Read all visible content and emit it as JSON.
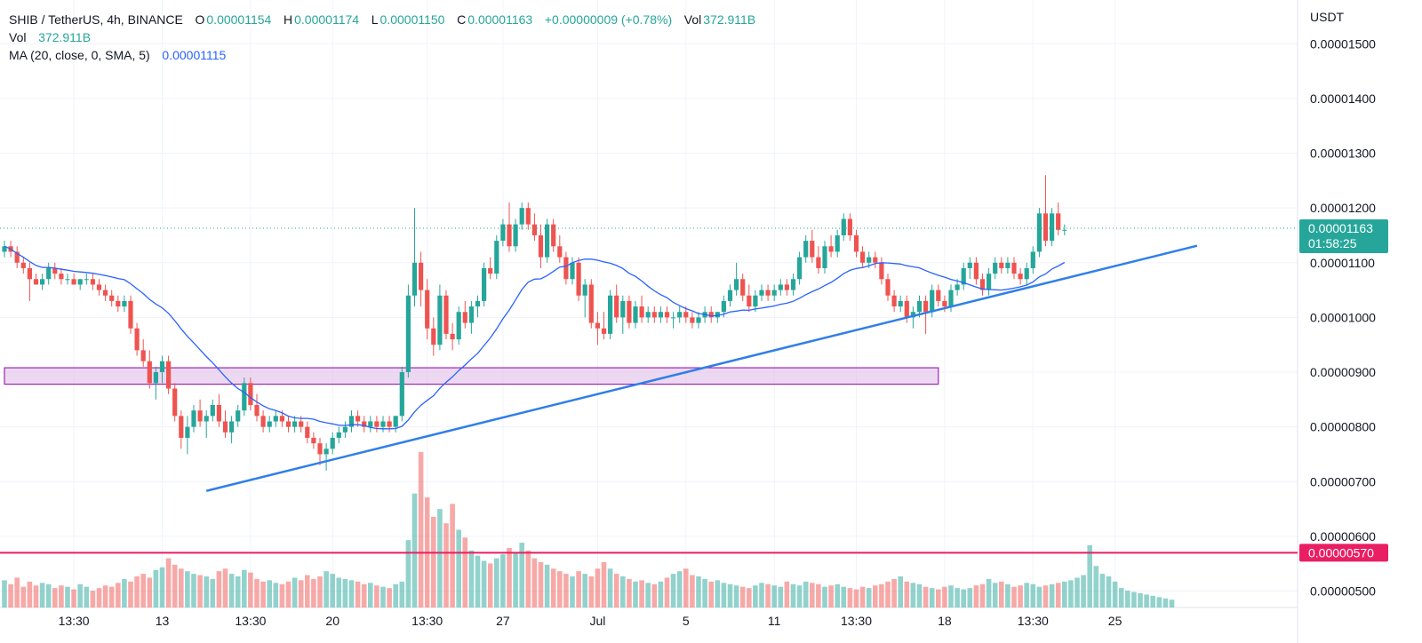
{
  "legend": {
    "symbol": "SHIB / TetherUS, 4h, BINANCE",
    "o_label": "O",
    "o_value": "0.00001154",
    "h_label": "H",
    "h_value": "0.00001174",
    "l_label": "L",
    "l_value": "0.00001150",
    "c_label": "C",
    "c_value": "0.00001163",
    "change": "+0.00000009 (+0.78%)",
    "vol_label": "Vol",
    "vol_value": "372.911B",
    "vol_row_label": "Vol",
    "vol_row_value": "372.911B",
    "ma_label": "MA (20, close, 0, SMA, 5)",
    "ma_value": "0.00001115"
  },
  "colors": {
    "up": "#26a69a",
    "down": "#ef5350",
    "ma": "#2962ff",
    "trendline": "#2f7fe8",
    "support_line": "#e91e63",
    "zone_fill": "#e1bee7",
    "zone_stroke": "#9c27b0"
  },
  "chart_data": {
    "type": "candlestick",
    "currency": "USDT",
    "ylim": [
      4.7e-06,
      1.58e-05
    ],
    "y_ticks": [
      "0.00001500",
      "0.00001400",
      "0.00001300",
      "0.00001200",
      "0.00001100",
      "0.00001000",
      "0.00000900",
      "0.00000800",
      "0.00000700",
      "0.00000600",
      "0.00000500"
    ],
    "y_tick_values": [
      1.5e-05,
      1.4e-05,
      1.3e-05,
      1.2e-05,
      1.1e-05,
      1e-05,
      9e-06,
      8e-06,
      7e-06,
      6e-06,
      5e-06
    ],
    "x_ticks": [
      "13:30",
      "13",
      "13:30",
      "20",
      "13:30",
      "27",
      "Jul",
      "5",
      "11",
      "13:30",
      "18",
      "13:30",
      "25"
    ],
    "x_tick_bars": [
      11,
      25,
      39,
      52,
      67,
      79,
      94,
      108,
      122,
      135,
      149,
      163,
      176
    ],
    "last_price": "0.00001163",
    "last_price_value": 1.163e-05,
    "countdown": "01:58:25",
    "support_price": "0.00000570",
    "support_value": 5.7e-06,
    "zone": {
      "from_bar": 0,
      "to_bar": 148,
      "low": 8.78e-06,
      "high": 9.08e-06
    },
    "trendline": {
      "start_bar": 32,
      "start_value": 6.83e-06,
      "end_bar": 189,
      "end_value": 1.131e-05
    },
    "candles_ohlc": [
      [
        1.12e-05,
        1.14e-05,
        1.11e-05,
        1.13e-05
      ],
      [
        1.13e-05,
        1.14e-05,
        1.11e-05,
        1.12e-05
      ],
      [
        1.12e-05,
        1.13e-05,
        1.09e-05,
        1.1e-05
      ],
      [
        1.1e-05,
        1.11e-05,
        1.08e-05,
        1.09e-05
      ],
      [
        1.09e-05,
        1.1e-05,
        1.03e-05,
        1.07e-05
      ],
      [
        1.07e-05,
        1.08e-05,
        1.06e-05,
        1.06e-05
      ],
      [
        1.06e-05,
        1.08e-05,
        1.05e-05,
        1.07e-05
      ],
      [
        1.07e-05,
        1.1e-05,
        1.06e-05,
        1.09e-05
      ],
      [
        1.09e-05,
        1.1e-05,
        1.07e-05,
        1.08e-05
      ],
      [
        1.08e-05,
        1.09e-05,
        1.06e-05,
        1.07e-05
      ],
      [
        1.07e-05,
        1.08e-05,
        1.06e-05,
        1.07e-05
      ],
      [
        1.07e-05,
        1.08e-05,
        1.06e-05,
        1.06e-05
      ],
      [
        1.06e-05,
        1.07e-05,
        1.05e-05,
        1.07e-05
      ],
      [
        1.07e-05,
        1.08e-05,
        1.06e-05,
        1.07e-05
      ],
      [
        1.07e-05,
        1.08e-05,
        1.05e-05,
        1.06e-05
      ],
      [
        1.06e-05,
        1.07e-05,
        1.04e-05,
        1.05e-05
      ],
      [
        1.05e-05,
        1.06e-05,
        1.03e-05,
        1.04e-05
      ],
      [
        1.04e-05,
        1.05e-05,
        1.02e-05,
        1.03e-05
      ],
      [
        1.03e-05,
        1.04e-05,
        1.01e-05,
        1.02e-05
      ],
      [
        1.02e-05,
        1.04e-05,
        1.01e-05,
        1.03e-05
      ],
      [
        1.03e-05,
        1.04e-05,
        9.7e-06,
        9.8e-06
      ],
      [
        9.8e-06,
        9.9e-06,
        9.3e-06,
        9.4e-06
      ],
      [
        9.4e-06,
        9.6e-06,
        9.1e-06,
        9.2e-06
      ],
      [
        9.2e-06,
        9.4e-06,
        8.7e-06,
        8.8e-06
      ],
      [
        8.8e-06,
        9.1e-06,
        8.5e-06,
        9e-06
      ],
      [
        9e-06,
        9.3e-06,
        8.8e-06,
        9.2e-06
      ],
      [
        9.2e-06,
        9.3e-06,
        8.6e-06,
        8.7e-06
      ],
      [
        8.7e-06,
        8.8e-06,
        8.1e-06,
        8.2e-06
      ],
      [
        8.2e-06,
        8.3e-06,
        7.6e-06,
        7.8e-06
      ],
      [
        7.8e-06,
        8.2e-06,
        7.5e-06,
        8e-06
      ],
      [
        8e-06,
        8.4e-06,
        7.9e-06,
        8.3e-06
      ],
      [
        8.3e-06,
        8.5e-06,
        8e-06,
        8.1e-06
      ],
      [
        8.1e-06,
        8.3e-06,
        7.8e-06,
        8.2e-06
      ],
      [
        8.2e-06,
        8.5e-06,
        8.1e-06,
        8.4e-06
      ],
      [
        8.4e-06,
        8.6e-06,
        8e-06,
        8.1e-06
      ],
      [
        8.1e-06,
        8.3e-06,
        7.8e-06,
        7.9e-06
      ],
      [
        7.9e-06,
        8.2e-06,
        7.7e-06,
        8.1e-06
      ],
      [
        8.1e-06,
        8.4e-06,
        8e-06,
        8.3e-06
      ],
      [
        8.3e-06,
        8.9e-06,
        8.2e-06,
        8.8e-06
      ],
      [
        8.8e-06,
        8.9e-06,
        8.3e-06,
        8.4e-06
      ],
      [
        8.4e-06,
        8.6e-06,
        8.1e-06,
        8.2e-06
      ],
      [
        8.2e-06,
        8.3e-06,
        7.9e-06,
        8e-06
      ],
      [
        8e-06,
        8.2e-06,
        7.9e-06,
        8.1e-06
      ],
      [
        8.1e-06,
        8.3e-06,
        8e-06,
        8.2e-06
      ],
      [
        8.2e-06,
        8.3e-06,
        8e-06,
        8.1e-06
      ],
      [
        8.1e-06,
        8.2e-06,
        7.9e-06,
        8e-06
      ],
      [
        8e-06,
        8.2e-06,
        7.9e-06,
        8.1e-06
      ],
      [
        8.1e-06,
        8.2e-06,
        7.9e-06,
        8e-06
      ],
      [
        8e-06,
        8.1e-06,
        7.7e-06,
        7.8e-06
      ],
      [
        7.8e-06,
        7.9e-06,
        7.6e-06,
        7.7e-06
      ],
      [
        7.7e-06,
        7.8e-06,
        7.3e-06,
        7.5e-06
      ],
      [
        7.5e-06,
        7.7e-06,
        7.2e-06,
        7.6e-06
      ],
      [
        7.6e-06,
        7.9e-06,
        7.5e-06,
        7.8e-06
      ],
      [
        7.8e-06,
        8e-06,
        7.7e-06,
        7.9e-06
      ],
      [
        7.9e-06,
        8.1e-06,
        7.8e-06,
        8e-06
      ],
      [
        8e-06,
        8.3e-06,
        7.9e-06,
        8.2e-06
      ],
      [
        8.2e-06,
        8.3e-06,
        8e-06,
        8.1e-06
      ],
      [
        8.1e-06,
        8.2e-06,
        7.9e-06,
        8e-06
      ],
      [
        8e-06,
        8.2e-06,
        7.9e-06,
        8.1e-06
      ],
      [
        8.1e-06,
        8.2e-06,
        7.9e-06,
        8e-06
      ],
      [
        8e-06,
        8.2e-06,
        7.9e-06,
        8.1e-06
      ],
      [
        8.1e-06,
        8.2e-06,
        7.9e-06,
        8e-06
      ],
      [
        8e-06,
        8.2e-06,
        7.9e-06,
        8.2e-06
      ],
      [
        8.2e-06,
        9.1e-06,
        8.1e-06,
        9e-06
      ],
      [
        9e-06,
        1.06e-05,
        8.9e-06,
        1.04e-05
      ],
      [
        1.04e-05,
        1.2e-05,
        1.02e-05,
        1.1e-05
      ],
      [
        1.1e-05,
        1.12e-05,
        1.02e-05,
        1.05e-05
      ],
      [
        1.05e-05,
        1.07e-05,
        9.6e-06,
        9.8e-06
      ],
      [
        9.8e-06,
        1e-05,
        9.3e-06,
        9.5e-06
      ],
      [
        9.5e-06,
        1.06e-05,
        9.4e-06,
        1.04e-05
      ],
      [
        1.04e-05,
        1.05e-05,
        9.6e-06,
        9.7e-06
      ],
      [
        9.7e-06,
        9.9e-06,
        9.4e-06,
        9.6e-06
      ],
      [
        9.6e-06,
        1.02e-05,
        9.5e-06,
        1.01e-05
      ],
      [
        1.01e-05,
        1.03e-05,
        9.8e-06,
        9.9e-06
      ],
      [
        9.9e-06,
        1.03e-05,
        9.7e-06,
        1.02e-05
      ],
      [
        1.02e-05,
        1.04e-05,
        1e-05,
        1.03e-05
      ],
      [
        1.03e-05,
        1.1e-05,
        1.02e-05,
        1.09e-05
      ],
      [
        1.09e-05,
        1.11e-05,
        1.07e-05,
        1.08e-05
      ],
      [
        1.08e-05,
        1.15e-05,
        1.07e-05,
        1.14e-05
      ],
      [
        1.14e-05,
        1.18e-05,
        1.13e-05,
        1.17e-05
      ],
      [
        1.17e-05,
        1.21e-05,
        1.12e-05,
        1.13e-05
      ],
      [
        1.13e-05,
        1.18e-05,
        1.12e-05,
        1.17e-05
      ],
      [
        1.17e-05,
        1.21e-05,
        1.16e-05,
        1.2e-05
      ],
      [
        1.2e-05,
        1.21e-05,
        1.16e-05,
        1.17e-05
      ],
      [
        1.17e-05,
        1.19e-05,
        1.14e-05,
        1.15e-05
      ],
      [
        1.15e-05,
        1.17e-05,
        1.09e-05,
        1.11e-05
      ],
      [
        1.11e-05,
        1.18e-05,
        1.1e-05,
        1.17e-05
      ],
      [
        1.17e-05,
        1.18e-05,
        1.12e-05,
        1.13e-05
      ],
      [
        1.13e-05,
        1.15e-05,
        1.1e-05,
        1.11e-05
      ],
      [
        1.11e-05,
        1.12e-05,
        1.06e-05,
        1.07e-05
      ],
      [
        1.07e-05,
        1.11e-05,
        1.06e-05,
        1.1e-05
      ],
      [
        1.1e-05,
        1.11e-05,
        1.03e-05,
        1.04e-05
      ],
      [
        1.04e-05,
        1.07e-05,
        1e-05,
        1.06e-05
      ],
      [
        1.06e-05,
        1.07e-05,
        9.8e-06,
        9.9e-06
      ],
      [
        9.9e-06,
        1.01e-05,
        9.5e-06,
        9.8e-06
      ],
      [
        9.8e-06,
        1.01e-05,
        9.6e-06,
        9.7e-06
      ],
      [
        9.7e-06,
        1.05e-05,
        9.6e-06,
        1.04e-05
      ],
      [
        1.04e-05,
        1.06e-05,
        9.9e-06,
        1e-05
      ],
      [
        1e-05,
        1.04e-05,
        9.7e-06,
        1.03e-05
      ],
      [
        1.03e-05,
        1.04e-05,
        9.8e-06,
        9.9e-06
      ],
      [
        9.9e-06,
        1.03e-05,
        9.8e-06,
        1.02e-05
      ],
      [
        1.02e-05,
        1.04e-05,
        9.9e-06,
        1e-05
      ],
      [
        1e-05,
        1.02e-05,
        9.9e-06,
        1.01e-05
      ],
      [
        1.01e-05,
        1.02e-05,
        9.9e-06,
        1e-05
      ],
      [
        1e-05,
        1.02e-05,
        9.9e-06,
        1.01e-05
      ],
      [
        1.01e-05,
        1.02e-05,
        9.9e-06,
        1e-05
      ],
      [
        1e-05,
        1.01e-05,
        9.8e-06,
        1e-05
      ],
      [
        1e-05,
        1.02e-05,
        9.9e-06,
        1.01e-05
      ],
      [
        1.01e-05,
        1.02e-05,
        9.9e-06,
        1e-05
      ],
      [
        1e-05,
        1.01e-05,
        9.8e-06,
        9.9e-06
      ],
      [
        9.9e-06,
        1.01e-05,
        9.8e-06,
        1e-05
      ],
      [
        1e-05,
        1.02e-05,
        9.9e-06,
        1.01e-05
      ],
      [
        1.01e-05,
        1.02e-05,
        9.9e-06,
        1e-05
      ],
      [
        1e-05,
        1.01e-05,
        9.9e-06,
        1.01e-05
      ],
      [
        1.01e-05,
        1.04e-05,
        1e-05,
        1.03e-05
      ],
      [
        1.03e-05,
        1.06e-05,
        1.02e-05,
        1.05e-05
      ],
      [
        1.05e-05,
        1.1e-05,
        1.04e-05,
        1.07e-05
      ],
      [
        1.07e-05,
        1.08e-05,
        1.03e-05,
        1.04e-05
      ],
      [
        1.04e-05,
        1.06e-05,
        1.01e-05,
        1.02e-05
      ],
      [
        1.02e-05,
        1.05e-05,
        1.01e-05,
        1.04e-05
      ],
      [
        1.04e-05,
        1.06e-05,
        1.03e-05,
        1.05e-05
      ],
      [
        1.05e-05,
        1.06e-05,
        1.03e-05,
        1.04e-05
      ],
      [
        1.04e-05,
        1.06e-05,
        1.03e-05,
        1.05e-05
      ],
      [
        1.05e-05,
        1.07e-05,
        1.04e-05,
        1.06e-05
      ],
      [
        1.06e-05,
        1.07e-05,
        1.04e-05,
        1.05e-05
      ],
      [
        1.05e-05,
        1.08e-05,
        1.04e-05,
        1.07e-05
      ],
      [
        1.07e-05,
        1.12e-05,
        1.06e-05,
        1.11e-05
      ],
      [
        1.11e-05,
        1.15e-05,
        1.1e-05,
        1.14e-05
      ],
      [
        1.14e-05,
        1.16e-05,
        1.1e-05,
        1.11e-05
      ],
      [
        1.11e-05,
        1.13e-05,
        1.08e-05,
        1.09e-05
      ],
      [
        1.09e-05,
        1.14e-05,
        1.08e-05,
        1.13e-05
      ],
      [
        1.13e-05,
        1.15e-05,
        1.11e-05,
        1.12e-05
      ],
      [
        1.12e-05,
        1.16e-05,
        1.11e-05,
        1.15e-05
      ],
      [
        1.15e-05,
        1.19e-05,
        1.14e-05,
        1.18e-05
      ],
      [
        1.18e-05,
        1.19e-05,
        1.14e-05,
        1.15e-05
      ],
      [
        1.15e-05,
        1.16e-05,
        1.11e-05,
        1.12e-05
      ],
      [
        1.12e-05,
        1.13e-05,
        1.09e-05,
        1.1e-05
      ],
      [
        1.1e-05,
        1.12e-05,
        1.09e-05,
        1.11e-05
      ],
      [
        1.11e-05,
        1.12e-05,
        1.09e-05,
        1.1e-05
      ],
      [
        1.1e-05,
        1.11e-05,
        1.06e-05,
        1.07e-05
      ],
      [
        1.07e-05,
        1.08e-05,
        1.03e-05,
        1.04e-05
      ],
      [
        1.04e-05,
        1.05e-05,
        1.01e-05,
        1.02e-05
      ],
      [
        1.02e-05,
        1.04e-05,
        1.01e-05,
        1.03e-05
      ],
      [
        1.03e-05,
        1.04e-05,
        9.9e-06,
        1e-05
      ],
      [
        1e-05,
        1.02e-05,
        9.8e-06,
        1.01e-05
      ],
      [
        1.01e-05,
        1.04e-05,
        1e-05,
        1.03e-05
      ],
      [
        1.03e-05,
        1.04e-05,
        9.7e-06,
        1.01e-05
      ],
      [
        1.01e-05,
        1.06e-05,
        1e-05,
        1.05e-05
      ],
      [
        1.05e-05,
        1.06e-05,
        1.02e-05,
        1.03e-05
      ],
      [
        1.03e-05,
        1.04e-05,
        1.01e-05,
        1.02e-05
      ],
      [
        1.02e-05,
        1.06e-05,
        1.01e-05,
        1.05e-05
      ],
      [
        1.05e-05,
        1.07e-05,
        1.04e-05,
        1.06e-05
      ],
      [
        1.06e-05,
        1.1e-05,
        1.05e-05,
        1.09e-05
      ],
      [
        1.09e-05,
        1.11e-05,
        1.07e-05,
        1.1e-05
      ],
      [
        1.1e-05,
        1.11e-05,
        1.06e-05,
        1.07e-05
      ],
      [
        1.07e-05,
        1.08e-05,
        1.04e-05,
        1.05e-05
      ],
      [
        1.05e-05,
        1.09e-05,
        1.04e-05,
        1.08e-05
      ],
      [
        1.08e-05,
        1.11e-05,
        1.07e-05,
        1.1e-05
      ],
      [
        1.1e-05,
        1.11e-05,
        1.08e-05,
        1.09e-05
      ],
      [
        1.09e-05,
        1.11e-05,
        1.08e-05,
        1.1e-05
      ],
      [
        1.1e-05,
        1.11e-05,
        1.07e-05,
        1.08e-05
      ],
      [
        1.08e-05,
        1.09e-05,
        1.06e-05,
        1.07e-05
      ],
      [
        1.07e-05,
        1.1e-05,
        1.06e-05,
        1.09e-05
      ],
      [
        1.09e-05,
        1.13e-05,
        1.08e-05,
        1.12e-05
      ],
      [
        1.12e-05,
        1.2e-05,
        1.11e-05,
        1.19e-05
      ],
      [
        1.19e-05,
        1.26e-05,
        1.13e-05,
        1.14e-05
      ],
      [
        1.14e-05,
        1.2e-05,
        1.13e-05,
        1.19e-05
      ],
      [
        1.19e-05,
        1.21e-05,
        1.15e-05,
        1.16e-05
      ],
      [
        1.16e-05,
        1.17e-05,
        1.15e-05,
        1.16e-05
      ]
    ],
    "volumes_billion": [
      210,
      180,
      230,
      160,
      200,
      170,
      190,
      180,
      150,
      170,
      160,
      140,
      180,
      160,
      130,
      150,
      170,
      160,
      190,
      220,
      200,
      240,
      260,
      230,
      290,
      310,
      380,
      330,
      300,
      280,
      260,
      250,
      240,
      220,
      280,
      300,
      260,
      240,
      290,
      270,
      220,
      200,
      210,
      190,
      180,
      200,
      230,
      210,
      250,
      220,
      240,
      280,
      260,
      230,
      220,
      210,
      200,
      180,
      190,
      170,
      160,
      150,
      180,
      200,
      520,
      880,
      1200,
      850,
      700,
      760,
      650,
      800,
      600,
      540,
      440,
      400,
      360,
      340,
      380,
      410,
      460,
      420,
      500,
      440,
      380,
      350,
      330,
      300,
      280,
      260,
      240,
      280,
      260,
      240,
      300,
      350,
      300,
      260,
      240,
      220,
      200,
      210,
      190,
      180,
      200,
      230,
      260,
      280,
      300,
      250,
      240,
      220,
      200,
      210,
      190,
      180,
      170,
      160,
      150,
      170,
      190,
      180,
      170,
      160,
      200,
      180,
      170,
      200,
      190,
      180,
      160,
      170,
      180,
      160,
      150,
      140,
      160,
      150,
      170,
      180,
      200,
      220,
      240,
      200,
      190,
      180,
      160,
      150,
      140,
      160,
      170,
      150,
      140,
      150,
      170,
      180,
      220,
      190,
      200,
      180,
      160,
      170,
      190,
      180,
      160,
      170,
      180,
      190,
      200,
      210,
      230,
      250,
      480,
      320,
      260,
      240,
      200,
      150,
      130,
      120,
      110,
      100,
      90,
      80,
      70,
      60
    ]
  }
}
